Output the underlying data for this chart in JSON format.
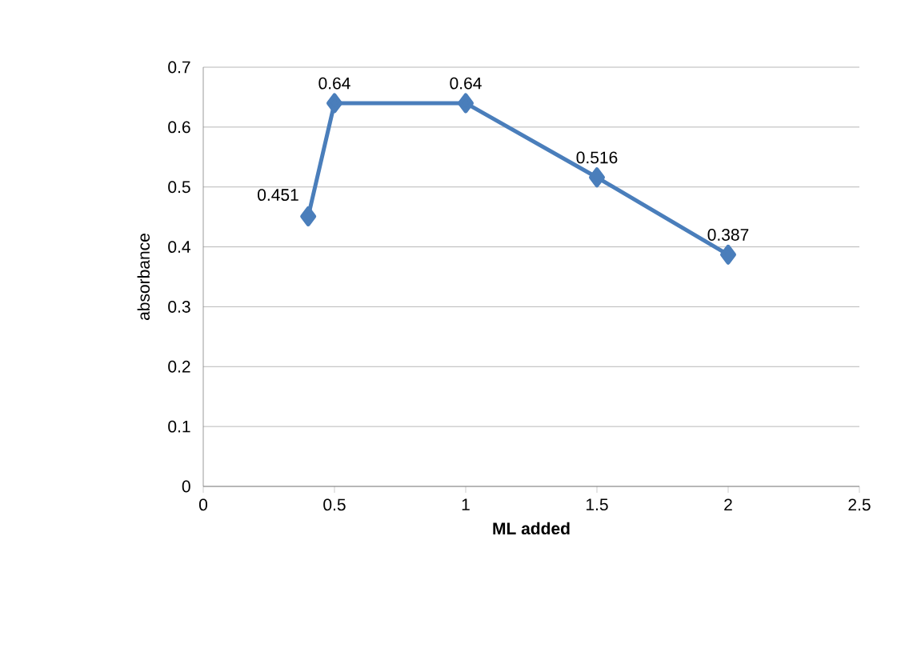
{
  "chart_data": {
    "type": "line",
    "xlabel": "ML added",
    "ylabel": "absorbance",
    "x": [
      0.4,
      0.5,
      1,
      1.5,
      2
    ],
    "values": [
      0.451,
      0.64,
      0.64,
      0.516,
      0.387
    ],
    "color": "#4a7ebb",
    "marker": "diamond",
    "line_style": "solid",
    "data_labels": true,
    "grid": "y",
    "xlim": [
      0,
      2.5
    ],
    "xticks": [
      0,
      0.5,
      1,
      1.5,
      2,
      2.5
    ],
    "ylim": [
      0,
      0.7
    ],
    "yticks": [
      0,
      0.1,
      0.2,
      0.3,
      0.4,
      0.5,
      0.6,
      0.7
    ]
  }
}
